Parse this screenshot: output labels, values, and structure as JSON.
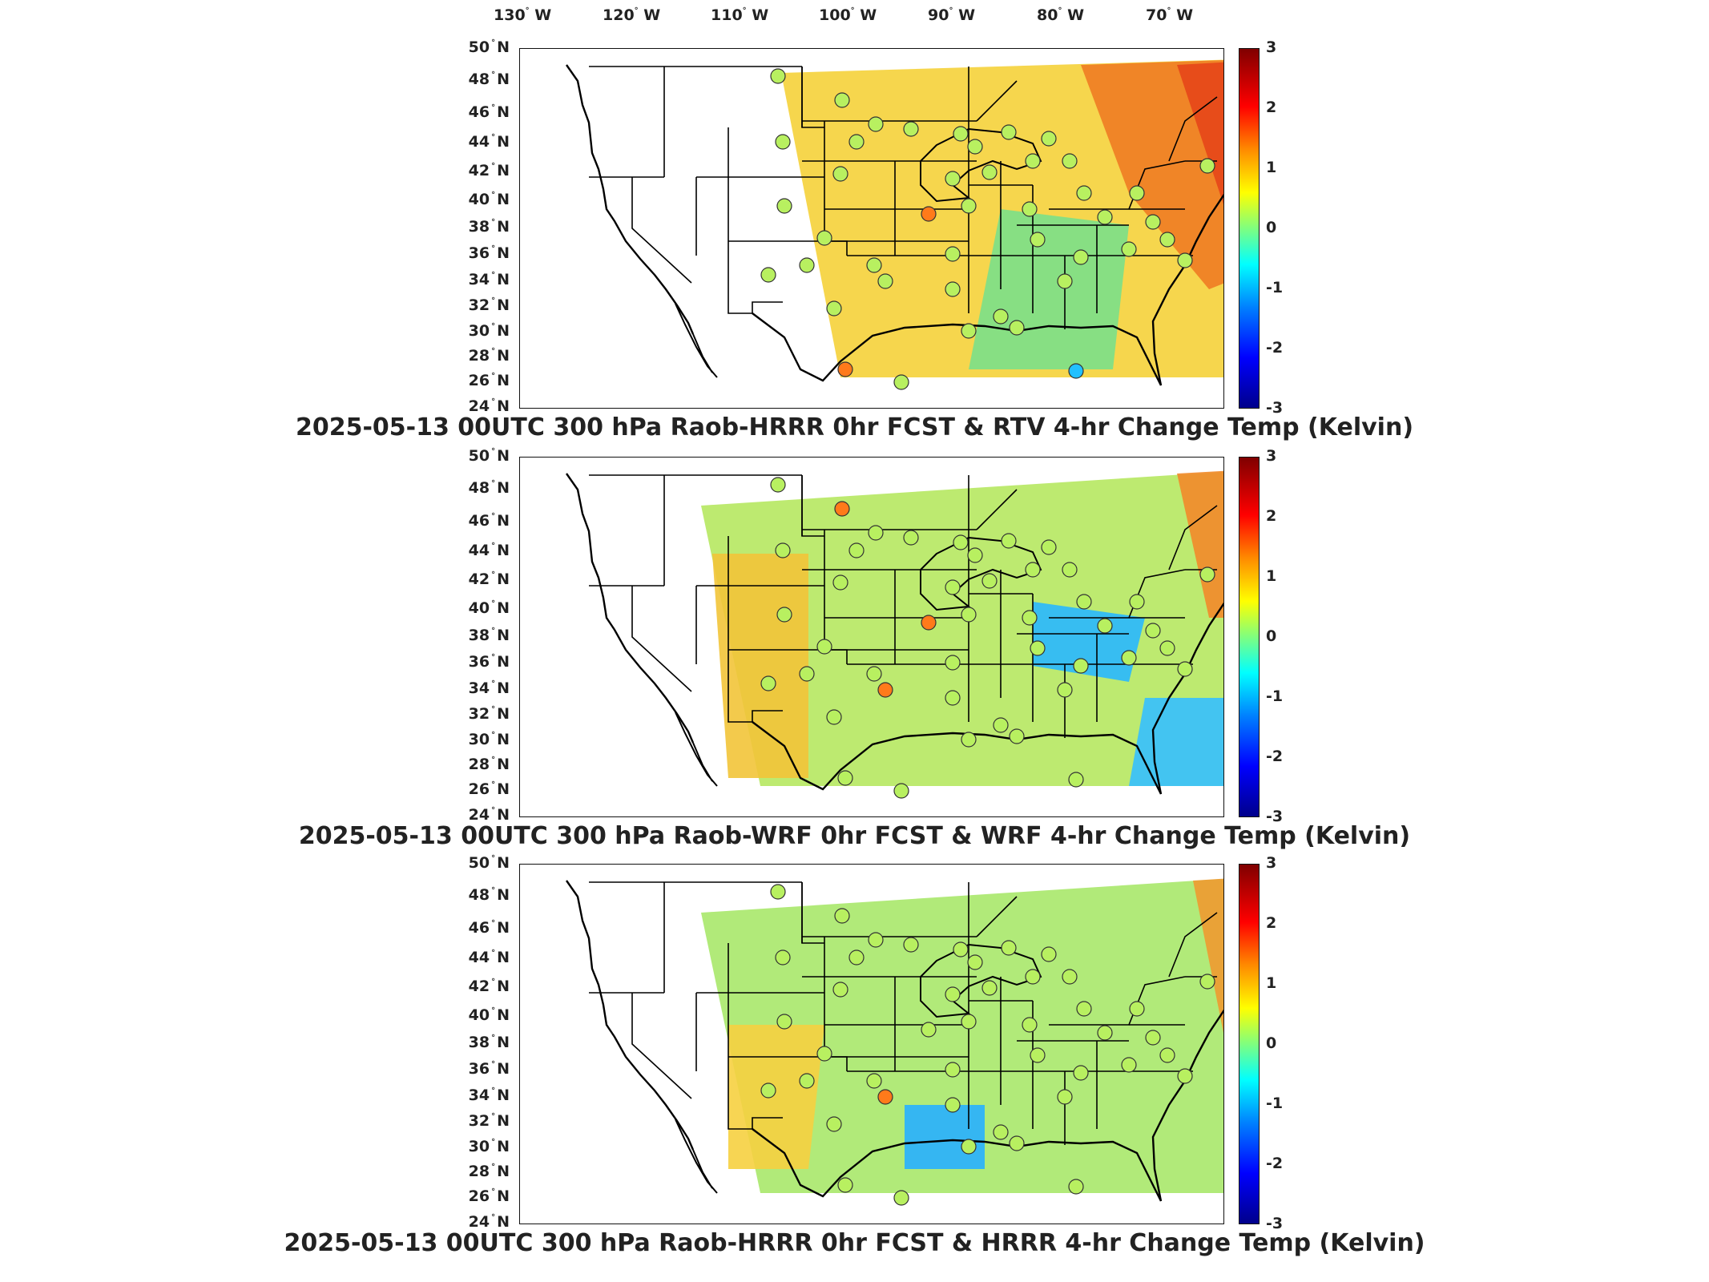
{
  "longitude_labels": [
    {
      "deg": "130",
      "hem": "W"
    },
    {
      "deg": "120",
      "hem": "W"
    },
    {
      "deg": "110",
      "hem": "W"
    },
    {
      "deg": "100",
      "hem": "W"
    },
    {
      "deg": "90",
      "hem": "W"
    },
    {
      "deg": "80",
      "hem": "W"
    },
    {
      "deg": "70",
      "hem": "W"
    }
  ],
  "latitude_labels": [
    {
      "deg": "50",
      "hem": "N"
    },
    {
      "deg": "48",
      "hem": "N"
    },
    {
      "deg": "46",
      "hem": "N"
    },
    {
      "deg": "44",
      "hem": "N"
    },
    {
      "deg": "42",
      "hem": "N"
    },
    {
      "deg": "40",
      "hem": "N"
    },
    {
      "deg": "38",
      "hem": "N"
    },
    {
      "deg": "36",
      "hem": "N"
    },
    {
      "deg": "34",
      "hem": "N"
    },
    {
      "deg": "32",
      "hem": "N"
    },
    {
      "deg": "30",
      "hem": "N"
    },
    {
      "deg": "28",
      "hem": "N"
    },
    {
      "deg": "26",
      "hem": "N"
    },
    {
      "deg": "24",
      "hem": "N"
    }
  ],
  "colorbar": {
    "ticks": [
      "3",
      "2",
      "1",
      "0",
      "-1",
      "-2",
      "-3"
    ],
    "range": [
      -3,
      3
    ],
    "colormap": "jet"
  },
  "panels": [
    {
      "title": "2025-05-13 00UTC 300 hPa Raob-HRRR 0hr FCST & RTV 4-hr Change Temp (Kelvin)"
    },
    {
      "title": "2025-05-13 00UTC 300 hPa Raob-WRF 0hr FCST & WRF 4-hr Change Temp (Kelvin)"
    },
    {
      "title": "2025-05-13 00UTC 300 hPa Raob-HRRR 0hr FCST & HRRR 4-hr Change Temp (Kelvin)"
    }
  ],
  "colors": {
    "warm_anomaly": "#ff7a1a",
    "neutral": "#b8f060",
    "cool_anomaly": "#22c0ff",
    "map_lines": "#000000"
  }
}
